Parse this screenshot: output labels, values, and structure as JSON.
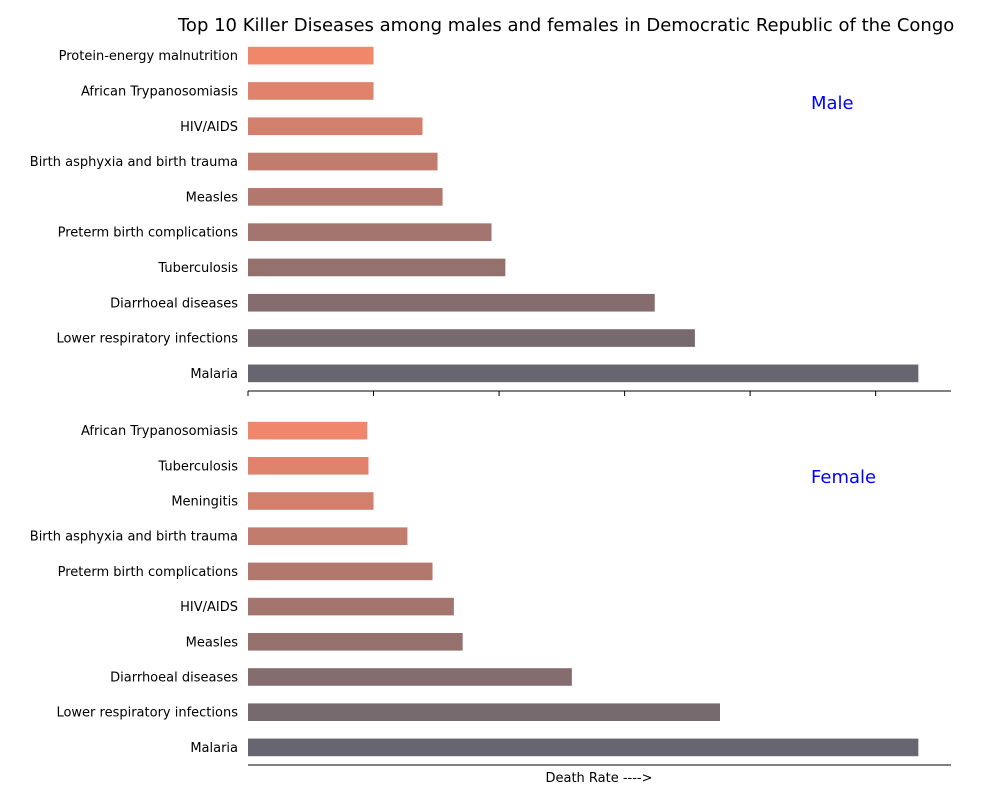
{
  "chart_data": {
    "title": "Top 10 Killer Diseases among males and females in Democratic Republic of the Congo",
    "xlabel": "Death Rate ---->",
    "panel_label_color": "#0000ff",
    "bar_color_start": "#f0876b",
    "bar_color_end": "#676670",
    "xlim": [
      0,
      28
    ],
    "panels": [
      {
        "type": "bar",
        "orientation": "horizontal",
        "label": "Male",
        "categories": [
          "Protein-energy malnutrition",
          "African Trypanosomiasis",
          "HIV/AIDS",
          "Birth asphyxia and birth trauma",
          "Measles",
          "Preterm birth complications",
          "Tuberculosis",
          "Diarrhoeal diseases",
          "Lower respiratory infections",
          "Malaria"
        ],
        "values": [
          5.0,
          5.0,
          6.95,
          7.55,
          7.75,
          9.7,
          10.25,
          16.2,
          17.8,
          26.7
        ]
      },
      {
        "type": "bar",
        "orientation": "horizontal",
        "label": "Female",
        "categories": [
          "African Trypanosomiasis",
          "Tuberculosis",
          "Meningitis",
          "Birth asphyxia and birth trauma",
          "Preterm birth complications",
          "HIV/AIDS",
          "Measles",
          "Diarrhoeal diseases",
          "Lower respiratory infections",
          "Malaria"
        ],
        "values": [
          4.75,
          4.8,
          5.0,
          6.35,
          7.35,
          8.2,
          8.55,
          12.9,
          18.8,
          26.7
        ]
      }
    ]
  }
}
